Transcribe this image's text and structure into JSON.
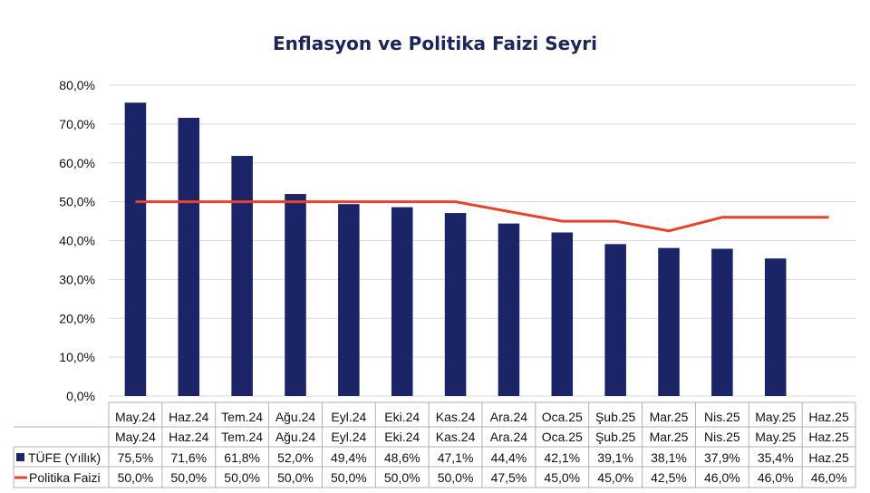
{
  "chart_data": {
    "type": "bar",
    "title": "Enflasyon ve Politika Faizi Seyri",
    "categories": [
      "May.24",
      "Haz.24",
      "Tem.24",
      "Ağu.24",
      "Eyl.24",
      "Eki.24",
      "Kas.24",
      "Ara.24",
      "Oca.25",
      "Şub.25",
      "Mar.25",
      "Nis.25",
      "May.25",
      "Haz.25"
    ],
    "ylim": [
      0,
      80
    ],
    "ytick_labels": [
      "0,0%",
      "10,0%",
      "20,0%",
      "30,0%",
      "40,0%",
      "50,0%",
      "60,0%",
      "70,0%",
      "80,0%"
    ],
    "grid": true,
    "series": [
      {
        "name": "TÜFE (Yıllık)",
        "type": "bar",
        "color": "#1a2466",
        "values": [
          75.5,
          71.6,
          61.8,
          52.0,
          49.4,
          48.6,
          47.1,
          44.4,
          42.1,
          39.1,
          38.1,
          37.9,
          35.4,
          null
        ],
        "labels": [
          "75,5%",
          "71,6%",
          "61,8%",
          "52,0%",
          "49,4%",
          "48,6%",
          "47,1%",
          "44,4%",
          "42,1%",
          "39,1%",
          "38,1%",
          "37,9%",
          "35,4%",
          "Haz.25"
        ]
      },
      {
        "name": "Politika Faizi",
        "type": "line",
        "color": "#e8412c",
        "values": [
          50.0,
          50.0,
          50.0,
          50.0,
          50.0,
          50.0,
          50.0,
          47.5,
          45.0,
          45.0,
          42.5,
          46.0,
          46.0,
          46.0
        ],
        "labels": [
          "50,0%",
          "50,0%",
          "50,0%",
          "50,0%",
          "50,0%",
          "50,0%",
          "50,0%",
          "47,5%",
          "45,0%",
          "45,0%",
          "42,5%",
          "46,0%",
          "46,0%",
          "46,0%"
        ]
      }
    ]
  }
}
